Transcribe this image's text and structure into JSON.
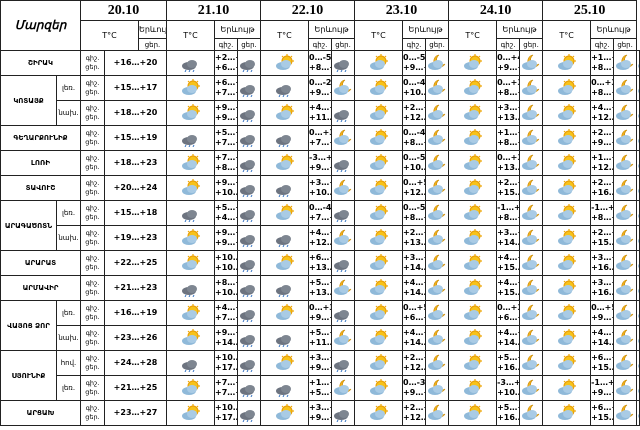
{
  "header": {
    "regions_label": "Մարզեր",
    "dates": [
      "20.10",
      "21.10",
      "22.10",
      "23.10",
      "24.10",
      "25.10"
    ],
    "temp_label": "T°C",
    "phenomenon_label": "Երևույթ",
    "night": "գիշ.",
    "day": "ցեր."
  },
  "regions": [
    {
      "name": "ՇԻՐԱԿ",
      "rows": [
        {
          "first": "+16…+20",
          "forecast": [
            [
              "+2…+7",
              "+6…+10"
            ],
            [
              "0…-5",
              "+8…+11"
            ],
            [
              "0…-5",
              "+9…+12"
            ],
            [
              "0…+4",
              "+9…+12"
            ],
            [
              "+1…+4",
              "+8…+12"
            ]
          ]
        }
      ]
    },
    {
      "name": "ԿՈՏԱՅՔ",
      "rows": [
        {
          "sub": "լեռ.",
          "first": "+15…+17",
          "forecast": [
            [
              "+6…+9",
              "+7…+10"
            ],
            [
              "0…-2",
              "+9…+12"
            ],
            [
              "0…-4",
              "+10…+13"
            ],
            [
              "0…+3",
              "+8…+11"
            ],
            [
              "0…+3",
              "+8…+11"
            ]
          ]
        },
        {
          "sub": "նախ.",
          "first": "+18…+20",
          "forecast": [
            [
              "+9…+11",
              "+9…+12"
            ],
            [
              "+4…+7",
              "+11…+13"
            ],
            [
              "+2…+5",
              "+12…+14"
            ],
            [
              "+3…+6",
              "+13…+15"
            ],
            [
              "+4…+6",
              "+12…+14"
            ]
          ]
        }
      ]
    },
    {
      "name": "ԳԵՂԱՐՔՈՒՆԻՔ",
      "rows": [
        {
          "first": "+15…+19",
          "forecast": [
            [
              "+5…+8",
              "+7…+9"
            ],
            [
              "0…+3",
              "+7…+10"
            ],
            [
              "0…-4",
              "+8…+12"
            ],
            [
              "+1…+4",
              "+8…+12"
            ],
            [
              "+2…+5",
              "+9…+12"
            ]
          ]
        }
      ]
    },
    {
      "name": "ԼՈՌԻ",
      "rows": [
        {
          "first": "+18…+23",
          "forecast": [
            [
              "+7…+10",
              "+8…+11"
            ],
            [
              "-3…+2",
              "+9…+12"
            ],
            [
              "0…-5",
              "+10…+13"
            ],
            [
              "0…+3",
              "+13…+16"
            ],
            [
              "+1…+4",
              "+12…+16"
            ]
          ]
        }
      ]
    },
    {
      "name": "ՏԱՎՈՒՇ",
      "rows": [
        {
          "first": "+20…+24",
          "forecast": [
            [
              "+9…+12",
              "+10…+13"
            ],
            [
              "+3…+7",
              "+10…+14"
            ],
            [
              "0…+5",
              "+12…+16"
            ],
            [
              "+2…+7",
              "+15…+18"
            ],
            [
              "+2…+7",
              "+16…+19"
            ]
          ]
        }
      ]
    },
    {
      "name": "ԱՐԱԳԱԾՈՏՆ",
      "rows": [
        {
          "sub": "լեռ.",
          "first": "+15…+18",
          "forecast": [
            [
              "+5…+7",
              "+4…+8"
            ],
            [
              "0…-4",
              "+7…+10"
            ],
            [
              "0…-5",
              "+8…+11"
            ],
            [
              "-1…+2",
              "+8…+11"
            ],
            [
              "-1…+3",
              "+8…+11"
            ]
          ]
        },
        {
          "sub": "նախ.",
          "first": "+19…+23",
          "forecast": [
            [
              "+9…+11",
              "+9…+12"
            ],
            [
              "+4…+7",
              "+12…+15"
            ],
            [
              "+2…+5",
              "+13…+16"
            ],
            [
              "+3…+6",
              "+14…+16"
            ],
            [
              "+2…+5",
              "+15…+17"
            ]
          ]
        }
      ]
    },
    {
      "name": "ԱՐԱՐԱՏ",
      "rows": [
        {
          "first": "+22…+25",
          "forecast": [
            [
              "+10…+12",
              "+10…+12"
            ],
            [
              "+6…+9",
              "+13…+16"
            ],
            [
              "+3…+6",
              "+14…+16"
            ],
            [
              "+4…+7",
              "+15…+18"
            ],
            [
              "+3…+6",
              "+16…+19"
            ]
          ]
        }
      ]
    },
    {
      "name": "ԱՐՄԱՎԻՐ",
      "rows": [
        {
          "first": "+21…+23",
          "forecast": [
            [
              "+8…+10",
              "+10…+13"
            ],
            [
              "+5…+8",
              "+13…+15"
            ],
            [
              "+4…+7",
              "+14…+17"
            ],
            [
              "+4…+7",
              "+15…+17"
            ],
            [
              "+3…+6",
              "+16…+18"
            ]
          ]
        }
      ]
    },
    {
      "name": "ՎԱՅՈՑ ՁՈՐ",
      "rows": [
        {
          "sub": "լեռ.",
          "first": "+16…+19",
          "forecast": [
            [
              "+4…+6",
              "+7…+9"
            ],
            [
              "0…+3",
              "+9…+12"
            ],
            [
              "0…+5",
              "+6…+9"
            ],
            [
              "0…+3",
              "+6…+9"
            ],
            [
              "0…+5",
              "+9…+12"
            ]
          ]
        },
        {
          "sub": "նախ.",
          "first": "+23…+26",
          "forecast": [
            [
              "+9…+11",
              "+14…+17"
            ],
            [
              "+5…+8",
              "+11…+14"
            ],
            [
              "+4…+6",
              "+14…+17"
            ],
            [
              "+4…+6",
              "+14…+16"
            ],
            [
              "+4…+6",
              "+14…+16"
            ]
          ]
        }
      ]
    },
    {
      "name": "ՍՅՈՒՆԻՔ",
      "rows": [
        {
          "sub": "հով.",
          "first": "+24…+28",
          "forecast": [
            [
              "+10…+14",
              "+17…+22"
            ],
            [
              "+3…+8",
              "+9…+14"
            ],
            [
              "+2…+6",
              "+12…+17"
            ],
            [
              "+5…+9",
              "+16…+20"
            ],
            [
              "+6…+11",
              "+15…+18"
            ]
          ]
        },
        {
          "sub": "լեռ.",
          "first": "+21…+25",
          "forecast": [
            [
              "+7…+10",
              "+7…+10"
            ],
            [
              "+1…+4",
              "+5…+9"
            ],
            [
              "0…-3",
              "+9…+12"
            ],
            [
              "-3…+1",
              "+10…+13"
            ],
            [
              "-1…+3",
              "+9…+12"
            ]
          ]
        }
      ]
    },
    {
      "name": "ԱՐՑԱԽ",
      "rows": [
        {
          "first": "+23…+27",
          "forecast": [
            [
              "+10…+14",
              "+17…+20"
            ],
            [
              "+3…+8",
              "+9…+14"
            ],
            [
              "+2…+6",
              "+12…+17"
            ],
            [
              "+5…+9",
              "+16…+20"
            ],
            [
              "+6…+11",
              "+15…+20"
            ]
          ]
        }
      ]
    }
  ]
}
